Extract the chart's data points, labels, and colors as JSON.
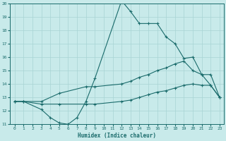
{
  "xlabel": "Humidex (Indice chaleur)",
  "bg_color": "#c8eaea",
  "grid_color": "#a8d4d4",
  "line_color": "#1a6b6b",
  "xlim": [
    -0.5,
    23.5
  ],
  "ylim": [
    11,
    20
  ],
  "xticks": [
    0,
    1,
    2,
    3,
    4,
    5,
    6,
    7,
    8,
    9,
    10,
    11,
    12,
    13,
    14,
    15,
    16,
    17,
    18,
    19,
    20,
    21,
    22,
    23
  ],
  "yticks": [
    11,
    12,
    13,
    14,
    15,
    16,
    17,
    18,
    19,
    20
  ],
  "lines": [
    {
      "x": [
        0,
        1,
        3,
        4,
        5,
        6,
        7,
        8,
        9,
        12,
        13,
        14,
        15,
        16,
        17,
        18,
        19,
        20,
        21,
        22,
        23
      ],
      "y": [
        12.7,
        12.7,
        12.1,
        11.5,
        11.1,
        11.0,
        11.5,
        12.7,
        14.4,
        20.2,
        19.4,
        18.5,
        18.5,
        18.5,
        17.5,
        17.0,
        15.9,
        16.0,
        14.7,
        13.9,
        13.0
      ]
    },
    {
      "x": [
        0,
        1,
        3,
        5,
        8,
        9,
        12,
        13,
        14,
        15,
        16,
        17,
        18,
        19,
        20,
        21,
        22,
        23
      ],
      "y": [
        12.7,
        12.7,
        12.7,
        13.3,
        13.8,
        13.8,
        14.0,
        14.2,
        14.5,
        14.7,
        15.0,
        15.2,
        15.5,
        15.7,
        15.0,
        14.7,
        14.7,
        13.0
      ]
    },
    {
      "x": [
        0,
        1,
        3,
        5,
        8,
        9,
        12,
        13,
        14,
        15,
        16,
        17,
        18,
        19,
        20,
        21,
        22,
        23
      ],
      "y": [
        12.7,
        12.7,
        12.5,
        12.5,
        12.5,
        12.5,
        12.7,
        12.8,
        13.0,
        13.2,
        13.4,
        13.5,
        13.7,
        13.9,
        14.0,
        13.9,
        13.9,
        13.0
      ]
    }
  ]
}
